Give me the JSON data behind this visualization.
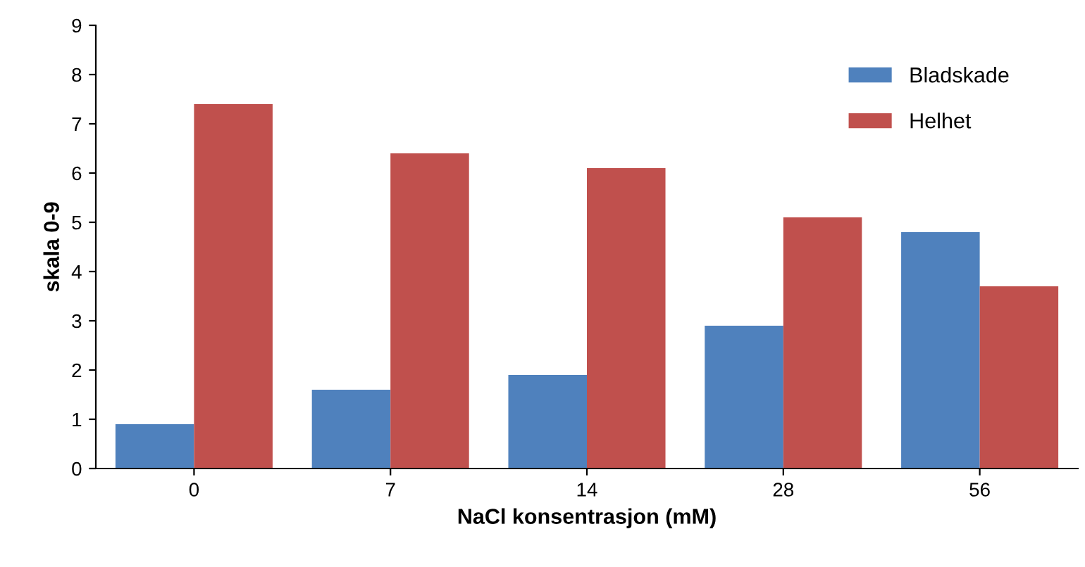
{
  "chart_data": {
    "type": "bar",
    "xlabel": "NaCl konsentrasjon (mM)",
    "ylabel": "skala 0-9",
    "categories": [
      "0",
      "7",
      "14",
      "28",
      "56"
    ],
    "series": [
      {
        "name": "Bladskade",
        "color": "#4f81bd",
        "values": [
          0.9,
          1.6,
          1.9,
          2.9,
          4.8
        ]
      },
      {
        "name": "Helhet",
        "color": "#c0504d",
        "values": [
          7.4,
          6.4,
          6.1,
          5.1,
          3.7
        ]
      }
    ],
    "ylim": [
      0,
      9
    ],
    "yticks": [
      0,
      1,
      2,
      3,
      4,
      5,
      6,
      7,
      8,
      9
    ],
    "grid": false,
    "legend": "top right"
  }
}
